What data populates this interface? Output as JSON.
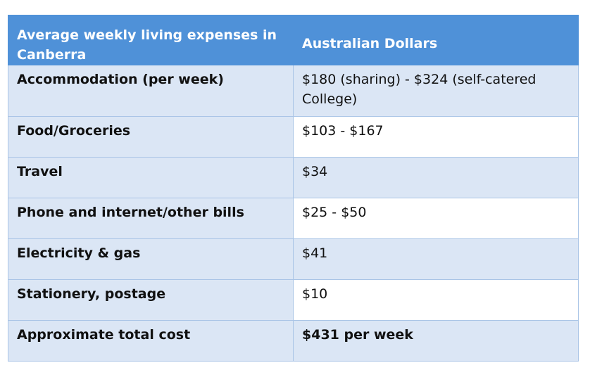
{
  "table": {
    "headers": [
      "Average weekly living expenses in Canberra",
      "Australian Dollars"
    ],
    "rows": [
      {
        "label": "Accommodation (per week)",
        "value": "$180 (sharing) - $324 (self-catered College)"
      },
      {
        "label": "Food/Groceries",
        "value": "$103 - $167"
      },
      {
        "label": "Travel",
        "value": "$34"
      },
      {
        "label": "Phone and internet/other bills",
        "value": "$25 - $50"
      },
      {
        "label": "Electricity & gas",
        "value": "$41"
      },
      {
        "label": "Stationery, postage",
        "value": "$10"
      },
      {
        "label": "Approximate total cost",
        "value": "$431 per week"
      }
    ]
  },
  "colors": {
    "header_bg": "#4f91d8",
    "shade_bg": "#dbe6f5",
    "border": "#a9c4e6"
  }
}
